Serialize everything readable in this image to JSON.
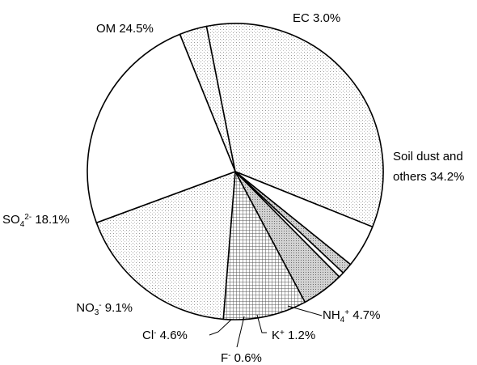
{
  "chart_data": {
    "type": "pie",
    "title": "",
    "slices": [
      {
        "name": "EC",
        "value": 3.0,
        "label": "EC 3.0%",
        "fill": "dots-light"
      },
      {
        "name": "Soil dust and others",
        "value": 34.2,
        "label": [
          "Soil dust and",
          "others 34.2%"
        ],
        "fill": "dots-light"
      },
      {
        "name": "NH4+",
        "value": 4.7,
        "label": "NH4+ 4.7%",
        "fill": "white"
      },
      {
        "name": "K+",
        "value": 1.2,
        "label": "K+ 1.2%",
        "fill": "dots-dark"
      },
      {
        "name": "F-",
        "value": 0.6,
        "label": "F- 0.6%",
        "fill": "white"
      },
      {
        "name": "Cl-",
        "value": 4.6,
        "label": "Cl- 4.6%",
        "fill": "dots-dark"
      },
      {
        "name": "NO3-",
        "value": 9.1,
        "label": "NO3- 9.1%",
        "fill": "grid"
      },
      {
        "name": "SO42-",
        "value": 18.1,
        "label": "SO42- 18.1%",
        "fill": "dots-light"
      },
      {
        "name": "OM",
        "value": 24.5,
        "label": "OM 24.5%",
        "fill": "white"
      }
    ],
    "legend": "none",
    "start_angle_deg": 338
  }
}
